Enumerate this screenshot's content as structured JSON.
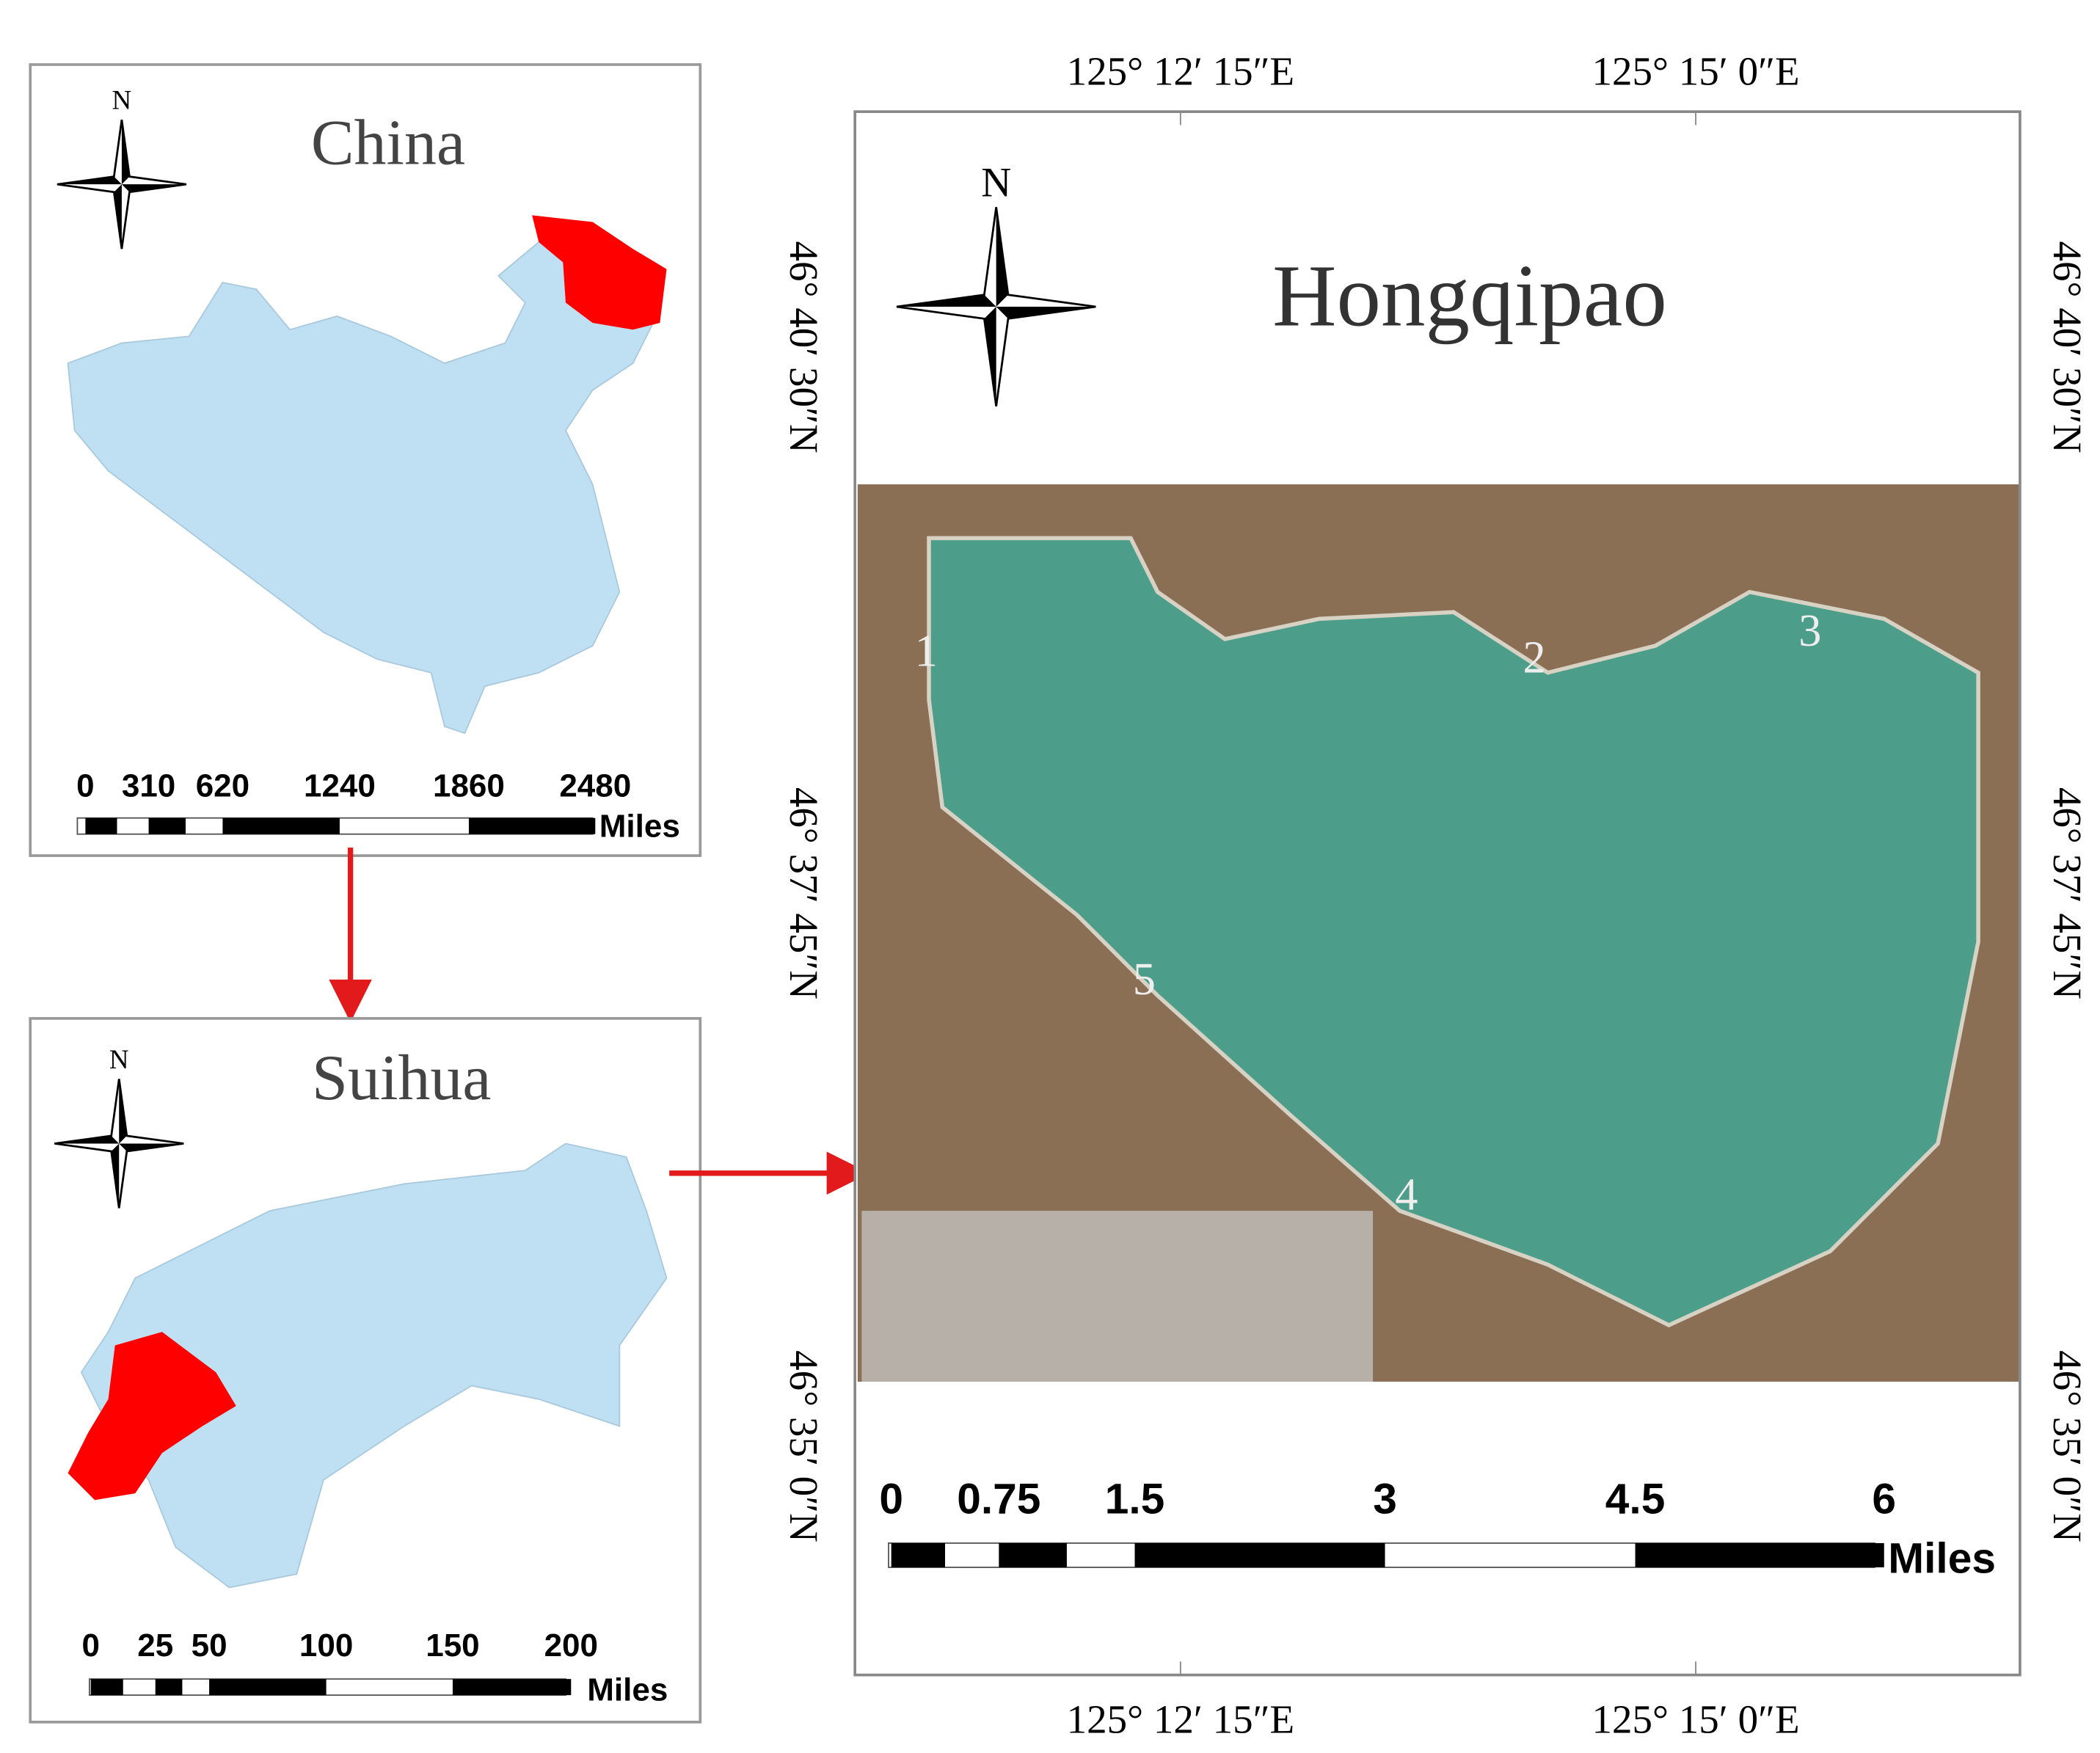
{
  "panels": [
    {
      "title": "China",
      "north": "N",
      "scale": {
        "labels": [
          "0",
          "310",
          "620",
          "1240",
          "1860",
          "2480"
        ],
        "unit": "Miles"
      }
    },
    {
      "title": "Suihua",
      "north": "N",
      "scale": {
        "labels": [
          "0",
          "25",
          "50",
          "100",
          "150",
          "200"
        ],
        "unit": "Miles"
      }
    },
    {
      "title": "Hongqipao",
      "north": "N",
      "scale": {
        "labels": [
          "0",
          "0.75",
          "1.5",
          "3",
          "4.5",
          "6"
        ],
        "unit": "Miles"
      },
      "top_labels": [
        "125° 12′ 15″E",
        "125° 15′ 0″E"
      ],
      "bottom_labels": [
        "125° 12′ 15″E",
        "125° 15′ 0″E"
      ],
      "left_labels": [
        "46° 40′ 30″N",
        "46° 37′ 45″N",
        "46° 35′ 0″N"
      ],
      "right_labels": [
        "46° 40′ 30″N",
        "46° 37′ 45″N",
        "46° 35′ 0″N"
      ],
      "sites": [
        "1",
        "2",
        "3",
        "4",
        "5"
      ]
    }
  ]
}
